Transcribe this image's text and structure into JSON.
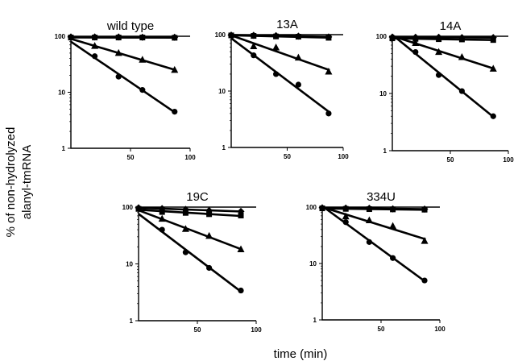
{
  "figure": {
    "ylabel_line1": "% of non-hydrolyzed",
    "ylabel_line2": "alanyl-tmRNA",
    "xlabel": "time (min)"
  },
  "chart_data": [
    {
      "type": "scatter",
      "title": "wild type",
      "xlim": [
        0,
        100
      ],
      "ylim": [
        1,
        100
      ],
      "yscale": "log",
      "xticks": [
        50,
        100
      ],
      "yticks": [
        1,
        10,
        100
      ],
      "series": [
        {
          "marker": "circle",
          "points": [
            [
              20,
              44
            ],
            [
              40,
              19
            ],
            [
              60,
              11
            ],
            [
              87,
              4.5
            ]
          ]
        },
        {
          "marker": "triangle",
          "points": [
            [
              20,
              67
            ],
            [
              40,
              50
            ],
            [
              60,
              38
            ],
            [
              87,
              25
            ]
          ]
        },
        {
          "marker": "square",
          "points": [
            [
              0,
              95
            ],
            [
              20,
              95
            ],
            [
              40,
              95
            ],
            [
              60,
              95
            ],
            [
              87,
              94
            ]
          ]
        },
        {
          "marker": "diamond",
          "points": [
            [
              0,
              97
            ],
            [
              20,
              97
            ],
            [
              40,
              97
            ],
            [
              60,
              96
            ],
            [
              87,
              96
            ]
          ]
        }
      ]
    },
    {
      "type": "scatter",
      "title": "13A",
      "xlim": [
        0,
        100
      ],
      "ylim": [
        1,
        100
      ],
      "yscale": "log",
      "xticks": [
        50,
        100
      ],
      "yticks": [
        1,
        10,
        100
      ],
      "series": [
        {
          "marker": "circle",
          "points": [
            [
              20,
              43
            ],
            [
              40,
              20
            ],
            [
              60,
              13
            ],
            [
              87,
              4
            ]
          ]
        },
        {
          "marker": "triangle",
          "points": [
            [
              20,
              62
            ],
            [
              40,
              59
            ],
            [
              60,
              39
            ],
            [
              87,
              22
            ]
          ]
        },
        {
          "marker": "square",
          "points": [
            [
              0,
              97
            ],
            [
              20,
              95
            ],
            [
              40,
              93
            ],
            [
              60,
              92
            ],
            [
              87,
              88
            ]
          ]
        },
        {
          "marker": "diamond",
          "points": [
            [
              0,
              98
            ],
            [
              20,
              97
            ],
            [
              40,
              96
            ],
            [
              60,
              94
            ],
            [
              87,
              91
            ]
          ]
        }
      ]
    },
    {
      "type": "scatter",
      "title": "14A",
      "xlim": [
        0,
        100
      ],
      "ylim": [
        1,
        100
      ],
      "yscale": "log",
      "xticks": [
        50,
        100
      ],
      "yticks": [
        1,
        10,
        100
      ],
      "series": [
        {
          "marker": "circle",
          "points": [
            [
              20,
              53
            ],
            [
              40,
              21
            ],
            [
              60,
              11
            ],
            [
              87,
              4
            ]
          ]
        },
        {
          "marker": "triangle",
          "points": [
            [
              20,
              76
            ],
            [
              40,
              53
            ],
            [
              60,
              43
            ],
            [
              87,
              27
            ]
          ]
        },
        {
          "marker": "square",
          "points": [
            [
              0,
              92
            ],
            [
              20,
              90
            ],
            [
              40,
              89
            ],
            [
              60,
              88
            ],
            [
              87,
              86
            ]
          ]
        },
        {
          "marker": "diamond",
          "points": [
            [
              0,
              97
            ],
            [
              20,
              96
            ],
            [
              40,
              96
            ],
            [
              60,
              95
            ],
            [
              87,
              95
            ]
          ]
        }
      ]
    },
    {
      "type": "scatter",
      "title": "19C",
      "xlim": [
        0,
        100
      ],
      "ylim": [
        1,
        100
      ],
      "yscale": "log",
      "xticks": [
        50,
        100
      ],
      "yticks": [
        1,
        10,
        100
      ],
      "series": [
        {
          "marker": "circle",
          "points": [
            [
              20,
              40
            ],
            [
              40,
              16
            ],
            [
              60,
              8.5
            ],
            [
              87,
              3.4
            ]
          ]
        },
        {
          "marker": "triangle",
          "points": [
            [
              20,
              62
            ],
            [
              40,
              41
            ],
            [
              60,
              31
            ],
            [
              87,
              18
            ]
          ]
        },
        {
          "marker": "square",
          "points": [
            [
              0,
              93
            ],
            [
              20,
              82
            ],
            [
              40,
              79
            ],
            [
              60,
              75
            ],
            [
              87,
              71
            ]
          ]
        },
        {
          "marker": "diamond",
          "points": [
            [
              0,
              97
            ],
            [
              20,
              94
            ],
            [
              40,
              91
            ],
            [
              60,
              87
            ],
            [
              87,
              84
            ]
          ]
        }
      ]
    },
    {
      "type": "scatter",
      "title": "334U",
      "xlim": [
        0,
        100
      ],
      "ylim": [
        1,
        100
      ],
      "yscale": "log",
      "xticks": [
        50,
        100
      ],
      "yticks": [
        1,
        10,
        100
      ],
      "series": [
        {
          "marker": "circle",
          "points": [
            [
              20,
              54
            ],
            [
              40,
              24
            ],
            [
              60,
              12.5
            ],
            [
              87,
              5
            ]
          ]
        },
        {
          "marker": "triangle",
          "points": [
            [
              20,
              68
            ],
            [
              40,
              58
            ],
            [
              60,
              46
            ],
            [
              87,
              25
            ]
          ]
        },
        {
          "marker": "square",
          "points": [
            [
              0,
              95
            ],
            [
              20,
              93
            ],
            [
              40,
              92
            ],
            [
              60,
              91
            ],
            [
              87,
              90
            ]
          ]
        },
        {
          "marker": "diamond",
          "points": [
            [
              0,
              97
            ],
            [
              20,
              96
            ],
            [
              40,
              95
            ],
            [
              60,
              93
            ],
            [
              87,
              92
            ]
          ]
        }
      ]
    }
  ]
}
